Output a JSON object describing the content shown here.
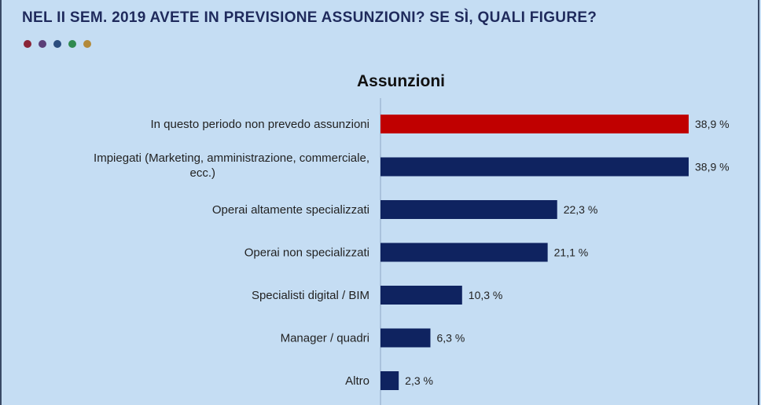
{
  "header": {
    "title": "NEL II SEM. 2019 AVETE IN PREVISIONE ASSUNZIONI? SE SÌ, QUALI FIGURE?",
    "dots": [
      {
        "name": "dot-maroon",
        "color": "#8a2437"
      },
      {
        "name": "dot-purple",
        "color": "#5b3f78"
      },
      {
        "name": "dot-navy",
        "color": "#2b4d7e"
      },
      {
        "name": "dot-green",
        "color": "#2f8a4f"
      },
      {
        "name": "dot-gold",
        "color": "#b38a3a"
      }
    ]
  },
  "chart_data": {
    "type": "bar",
    "orientation": "horizontal",
    "title": "Assunzioni",
    "categories": [
      [
        "In questo periodo non prevedo assunzioni"
      ],
      [
        "Impiegati (Marketing, amministrazione, commerciale,",
        "ecc.)"
      ],
      [
        "Operai altamente specializzati"
      ],
      [
        "Operai non specializzati"
      ],
      [
        "Specialisti digital / BIM"
      ],
      [
        "Manager / quadri"
      ],
      [
        "Altro"
      ]
    ],
    "values": [
      38.9,
      38.9,
      22.3,
      21.1,
      10.3,
      6.3,
      2.3
    ],
    "value_labels": [
      "38,9 %",
      "38,9 %",
      "22,3 %",
      "21,1 %",
      "10,3 %",
      "6,3 %",
      "2,3 %"
    ],
    "bar_colors": [
      "#c00000",
      "#0f2360",
      "#0f2360",
      "#0f2360",
      "#0f2360",
      "#0f2360",
      "#0f2360"
    ],
    "xlim": [
      0,
      38.9
    ],
    "grid": false,
    "legend": "none"
  }
}
